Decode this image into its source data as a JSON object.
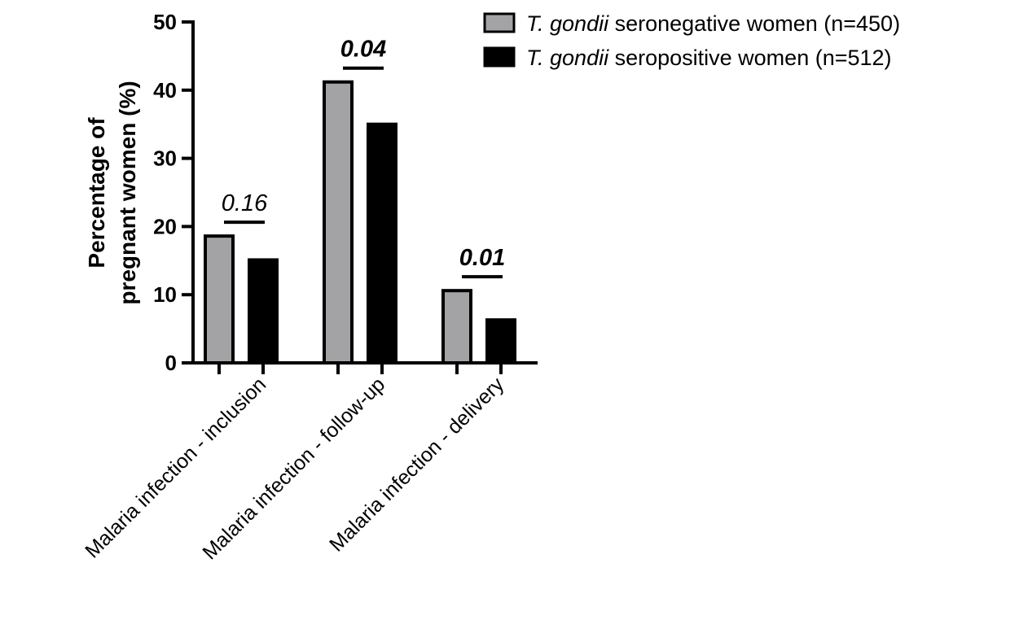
{
  "chart_data": {
    "type": "bar",
    "title": "",
    "xlabel": "",
    "ylabel": [
      "Percentage of",
      "pregnant women (%)"
    ],
    "ylim": [
      0,
      50
    ],
    "yticks": [
      0,
      10,
      20,
      30,
      40,
      50
    ],
    "categories": [
      "Malaria infection - inclusion",
      "Malaria infection - follow-up",
      "Malaria infection - delivery"
    ],
    "series": [
      {
        "name_italic": "T. gondii",
        "name_rest": " seronegative women (n=450)",
        "color": "#a3a3a6",
        "values": [
          18.6,
          41.2,
          10.6
        ]
      },
      {
        "name_italic": "T. gondii",
        "name_rest": " seropositive women (n=512)",
        "color": "#000000",
        "values": [
          15.1,
          35.0,
          6.3
        ]
      }
    ],
    "annotations": [
      {
        "category": 0,
        "text": "0.16",
        "bold": false
      },
      {
        "category": 1,
        "text": "0.04",
        "bold": true
      },
      {
        "category": 2,
        "text": "0.01",
        "bold": true
      }
    ],
    "legend_position": "top-right",
    "grid": false
  }
}
